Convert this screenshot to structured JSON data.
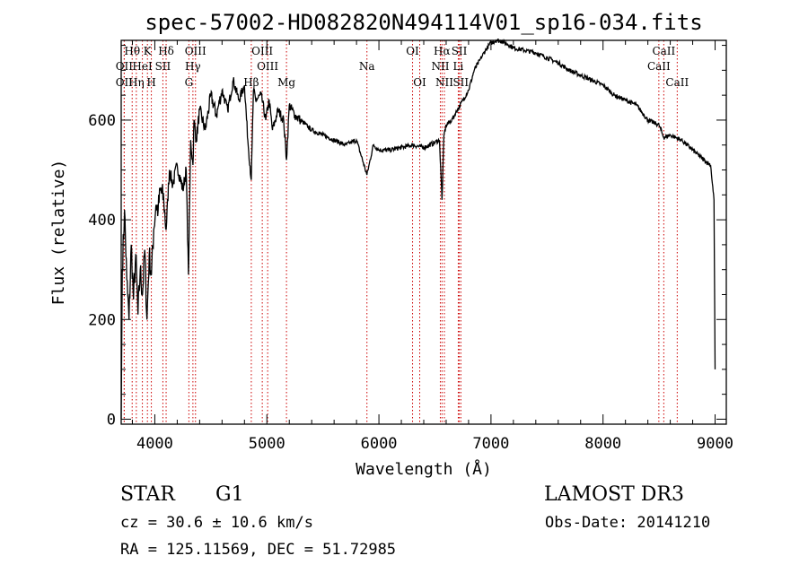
{
  "chart_data": {
    "type": "line",
    "title": "spec-57002-HD082820N494114V01_sp16-034.fits",
    "xlabel": "Wavelength (Å)",
    "ylabel": "Flux (relative)",
    "xlim": [
      3700,
      9100
    ],
    "ylim": [
      -10,
      760
    ],
    "xticks": [
      4000,
      5000,
      6000,
      7000,
      8000,
      9000
    ],
    "yticks": [
      0,
      200,
      400,
      600
    ],
    "series": [
      {
        "name": "flux",
        "x": [
          3700,
          3710,
          3730,
          3750,
          3770,
          3790,
          3810,
          3830,
          3850,
          3870,
          3890,
          3910,
          3930,
          3950,
          3970,
          3990,
          4010,
          4030,
          4050,
          4080,
          4101,
          4130,
          4160,
          4200,
          4250,
          4280,
          4300,
          4320,
          4340,
          4350,
          4370,
          4400,
          4450,
          4500,
          4550,
          4600,
          4650,
          4700,
          4750,
          4800,
          4830,
          4861,
          4880,
          4900,
          4950,
          4990,
          5020,
          5050,
          5100,
          5150,
          5175,
          5200,
          5250,
          5300,
          5400,
          5500,
          5600,
          5700,
          5800,
          5893,
          5950,
          6000,
          6100,
          6200,
          6300,
          6400,
          6500,
          6540,
          6563,
          6580,
          6600,
          6650,
          6700,
          6750,
          6800,
          6850,
          6900,
          6950,
          7000,
          7050,
          7100,
          7150,
          7200,
          7300,
          7400,
          7500,
          7600,
          7700,
          7800,
          7900,
          8000,
          8100,
          8200,
          8300,
          8400,
          8500,
          8542,
          8600,
          8700,
          8800,
          8900,
          8960,
          8990,
          9000
        ],
        "y": [
          0,
          300,
          420,
          280,
          200,
          350,
          240,
          330,
          210,
          300,
          250,
          340,
          200,
          330,
          290,
          380,
          430,
          420,
          460,
          440,
          380,
          500,
          470,
          510,
          460,
          500,
          290,
          560,
          510,
          600,
          560,
          620,
          580,
          650,
          610,
          660,
          620,
          680,
          640,
          670,
          560,
          480,
          660,
          640,
          650,
          600,
          640,
          580,
          620,
          600,
          520,
          630,
          610,
          600,
          580,
          570,
          560,
          550,
          560,
          490,
          550,
          540,
          540,
          545,
          550,
          545,
          555,
          560,
          440,
          570,
          590,
          600,
          620,
          640,
          660,
          700,
          720,
          740,
          755,
          760,
          758,
          752,
          745,
          740,
          735,
          725,
          715,
          700,
          690,
          680,
          670,
          650,
          640,
          630,
          600,
          590,
          565,
          570,
          560,
          540,
          520,
          510,
          440,
          100
        ]
      }
    ],
    "spectral_lines": [
      {
        "label": "Hθ",
        "x": 3798,
        "row": 1
      },
      {
        "label": "OII",
        "x": 3727,
        "row": 2
      },
      {
        "label": "OII",
        "x": 3727,
        "row": 3
      },
      {
        "label": "K",
        "x": 3934,
        "row": 1
      },
      {
        "label": "HeI",
        "x": 3889,
        "row": 2
      },
      {
        "label": "Hη",
        "x": 3835,
        "row": 3
      },
      {
        "label": "Hδ",
        "x": 4101,
        "row": 1
      },
      {
        "label": "SII",
        "x": 4072,
        "row": 2
      },
      {
        "label": "H",
        "x": 3969,
        "row": 3
      },
      {
        "label": "OIII",
        "x": 4363,
        "row": 1
      },
      {
        "label": "Hγ",
        "x": 4340,
        "row": 2
      },
      {
        "label": "G",
        "x": 4304,
        "row": 3
      },
      {
        "label": "OIII",
        "x": 4959,
        "row": 1
      },
      {
        "label": "OIII",
        "x": 5007,
        "row": 2
      },
      {
        "label": "Hβ",
        "x": 4861,
        "row": 3
      },
      {
        "label": "Mg",
        "x": 5175,
        "row": 3
      },
      {
        "label": "Na",
        "x": 5893,
        "row": 2
      },
      {
        "label": "OI",
        "x": 6300,
        "row": 1
      },
      {
        "label": "OI",
        "x": 6364,
        "row": 3
      },
      {
        "label": "Hα",
        "x": 6563,
        "row": 1
      },
      {
        "label": "NII",
        "x": 6548,
        "row": 2
      },
      {
        "label": "NII",
        "x": 6584,
        "row": 3
      },
      {
        "label": "SII",
        "x": 6717,
        "row": 1
      },
      {
        "label": "Li",
        "x": 6708,
        "row": 2
      },
      {
        "label": "SII",
        "x": 6731,
        "row": 3
      },
      {
        "label": "CaII",
        "x": 8542,
        "row": 1
      },
      {
        "label": "CaII",
        "x": 8498,
        "row": 2
      },
      {
        "label": "CaII",
        "x": 8662,
        "row": 3
      }
    ]
  },
  "info": {
    "object_type": "STAR",
    "subclass": "G1",
    "survey": "LAMOST DR3",
    "cz": "cz = 30.6 ± 10.6 km/s",
    "obs_date": "Obs-Date: 20141210",
    "coords": "RA = 125.11569, DEC =  51.72985"
  }
}
